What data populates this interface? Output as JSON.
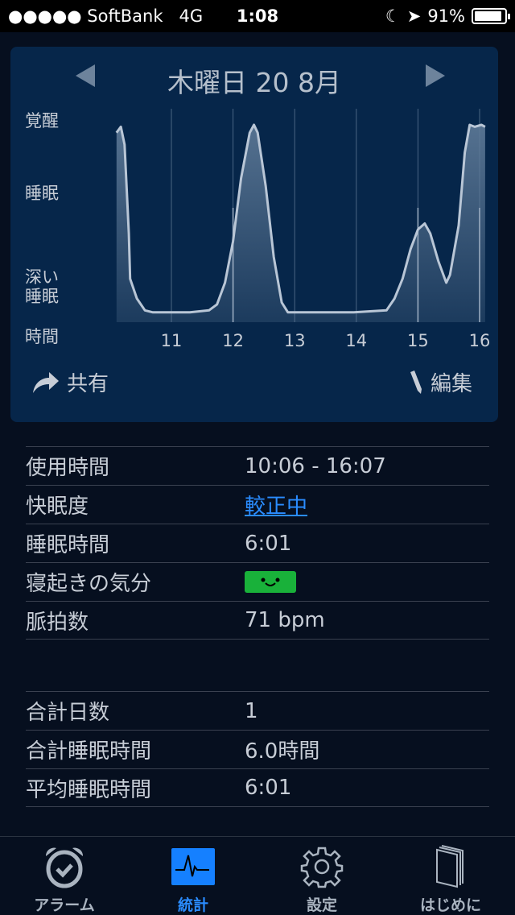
{
  "status": {
    "carrier": "●●●●● SoftBank",
    "network": "4G",
    "time": "1:08",
    "battery": "91%",
    "battery_level": 0.91
  },
  "card": {
    "date": "木曜日 20 8月",
    "y_labels": {
      "awake": "覚醒",
      "sleep": "睡眠",
      "deep1": "深い",
      "deep2": "睡眠",
      "time": "時間"
    },
    "share": "共有",
    "edit": "編集"
  },
  "chart_data": {
    "type": "area",
    "xlabel": "時間",
    "x_ticks": [
      11,
      12,
      13,
      14,
      15,
      16
    ],
    "y_levels": [
      "深い睡眠",
      "睡眠",
      "覚醒"
    ],
    "ylim": [
      0,
      1
    ],
    "xlim": [
      10.1,
      16.12
    ],
    "points": [
      [
        10.11,
        0.96
      ],
      [
        10.18,
        0.99
      ],
      [
        10.24,
        0.9
      ],
      [
        10.31,
        0.45
      ],
      [
        10.33,
        0.22
      ],
      [
        10.44,
        0.12
      ],
      [
        10.57,
        0.06
      ],
      [
        10.7,
        0.05
      ],
      [
        11.0,
        0.05
      ],
      [
        11.3,
        0.05
      ],
      [
        11.61,
        0.06
      ],
      [
        11.74,
        0.09
      ],
      [
        11.87,
        0.2
      ],
      [
        12.0,
        0.41
      ],
      [
        12.13,
        0.73
      ],
      [
        12.27,
        0.96
      ],
      [
        12.34,
        1.0
      ],
      [
        12.4,
        0.96
      ],
      [
        12.53,
        0.69
      ],
      [
        12.66,
        0.33
      ],
      [
        12.79,
        0.1
      ],
      [
        12.89,
        0.05
      ],
      [
        13.3,
        0.05
      ],
      [
        13.96,
        0.05
      ],
      [
        14.49,
        0.06
      ],
      [
        14.62,
        0.12
      ],
      [
        14.75,
        0.22
      ],
      [
        14.88,
        0.37
      ],
      [
        15.0,
        0.47
      ],
      [
        15.11,
        0.5
      ],
      [
        15.2,
        0.45
      ],
      [
        15.33,
        0.31
      ],
      [
        15.46,
        0.2
      ],
      [
        15.52,
        0.24
      ],
      [
        15.66,
        0.49
      ],
      [
        15.76,
        0.86
      ],
      [
        15.84,
        1.0
      ],
      [
        15.92,
        0.99
      ],
      [
        16.03,
        1.0
      ],
      [
        16.09,
        0.99
      ]
    ],
    "colors": {
      "line": "#b9c6d6",
      "fill": "#5e7a98"
    }
  },
  "details": [
    {
      "label": "使用時間",
      "value": "10:06 - 16:07"
    },
    {
      "label": "快眠度",
      "value": "較正中",
      "link": true
    },
    {
      "label": "睡眠時間",
      "value": "6:01"
    },
    {
      "label": "寝起きの気分",
      "value": "",
      "mood": "smile"
    },
    {
      "label": "脈拍数",
      "value": "71 bpm"
    }
  ],
  "totals": [
    {
      "label": "合計日数",
      "value": "1"
    },
    {
      "label": "合計睡眠時間",
      "value": "6.0時間"
    },
    {
      "label": "平均睡眠時間",
      "value": "6:01"
    }
  ],
  "tabs": [
    {
      "label": "アラーム",
      "icon": "alarm-clock-icon"
    },
    {
      "label": "統計",
      "icon": "pulse-icon",
      "active": true
    },
    {
      "label": "設定",
      "icon": "gear-icon"
    },
    {
      "label": "はじめに",
      "icon": "book-icon"
    }
  ],
  "accent": "#2a8cff"
}
